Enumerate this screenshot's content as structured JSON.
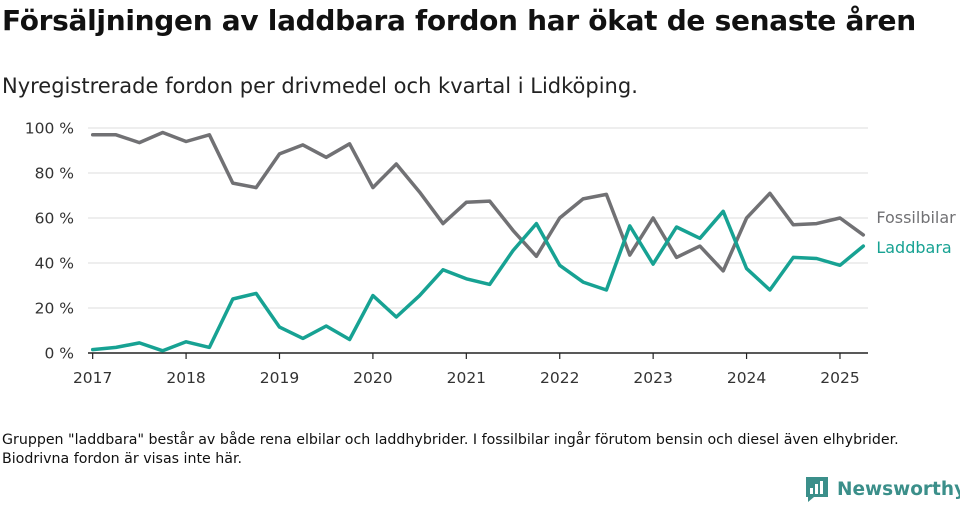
{
  "title": "Försäljningen av laddbara fordon har ökat de senaste åren",
  "subtitle": "Nyregistrerade fordon per drivmedel och kvartal i Lidköping.",
  "note": "Gruppen \"laddbara\" består av både rena elbilar och laddhybrider. I fossilbilar ingår förutom bensin och diesel även elhybrider. Biodrivna fordon är visas inte här.",
  "brand": {
    "name": "Newsworthy",
    "icon": "newsworthy-logo-icon",
    "color": "#3b8f8a"
  },
  "chart_data": {
    "type": "line",
    "ylim": [
      0,
      100
    ],
    "yticks": [
      0,
      20,
      40,
      60,
      80,
      100
    ],
    "ytick_labels": [
      "0 %",
      "20 %",
      "40 %",
      "60 %",
      "80 %",
      "100 %"
    ],
    "xlim": [
      2016.95,
      2025.3
    ],
    "xticks": [
      2017,
      2018,
      2019,
      2020,
      2021,
      2022,
      2023,
      2024,
      2025
    ],
    "xtick_labels": [
      "2017",
      "2018",
      "2019",
      "2020",
      "2021",
      "2022",
      "2023",
      "2024",
      "2025"
    ],
    "grid": "horizontal",
    "x": [
      "2017-Q1",
      "2017-Q2",
      "2017-Q3",
      "2017-Q4",
      "2018-Q1",
      "2018-Q2",
      "2018-Q3",
      "2018-Q4",
      "2019-Q1",
      "2019-Q2",
      "2019-Q3",
      "2019-Q4",
      "2020-Q1",
      "2020-Q2",
      "2020-Q3",
      "2020-Q4",
      "2021-Q1",
      "2021-Q2",
      "2021-Q3",
      "2021-Q4",
      "2022-Q1",
      "2022-Q2",
      "2022-Q3",
      "2022-Q4",
      "2023-Q1",
      "2023-Q2",
      "2023-Q3",
      "2023-Q4",
      "2024-Q1",
      "2024-Q2",
      "2024-Q3",
      "2024-Q4",
      "2025-Q1",
      "2025-Q2"
    ],
    "series": [
      {
        "name": "Fossilbilar",
        "color": "#717174",
        "values": [
          97,
          97,
          93.5,
          98,
          94,
          97,
          75.5,
          73.5,
          88.5,
          92.5,
          87,
          93,
          73.5,
          84,
          71.5,
          57.5,
          67,
          67.5,
          54.5,
          43,
          60,
          68.5,
          70.5,
          43.5,
          60,
          42.5,
          47.5,
          36.5,
          60,
          71,
          57,
          57.5,
          60,
          52.5
        ]
      },
      {
        "name": "Laddbara",
        "color": "#17a293",
        "values": [
          1.5,
          2.5,
          4.5,
          1,
          5,
          2.5,
          24,
          26.5,
          11.5,
          6.5,
          12,
          6,
          25.5,
          16,
          25.5,
          37,
          33,
          30.5,
          45.5,
          57.5,
          39,
          31.5,
          28,
          56.5,
          39.5,
          56,
          51,
          63,
          37.5,
          28,
          42.5,
          42,
          39,
          47.5
        ]
      }
    ]
  }
}
